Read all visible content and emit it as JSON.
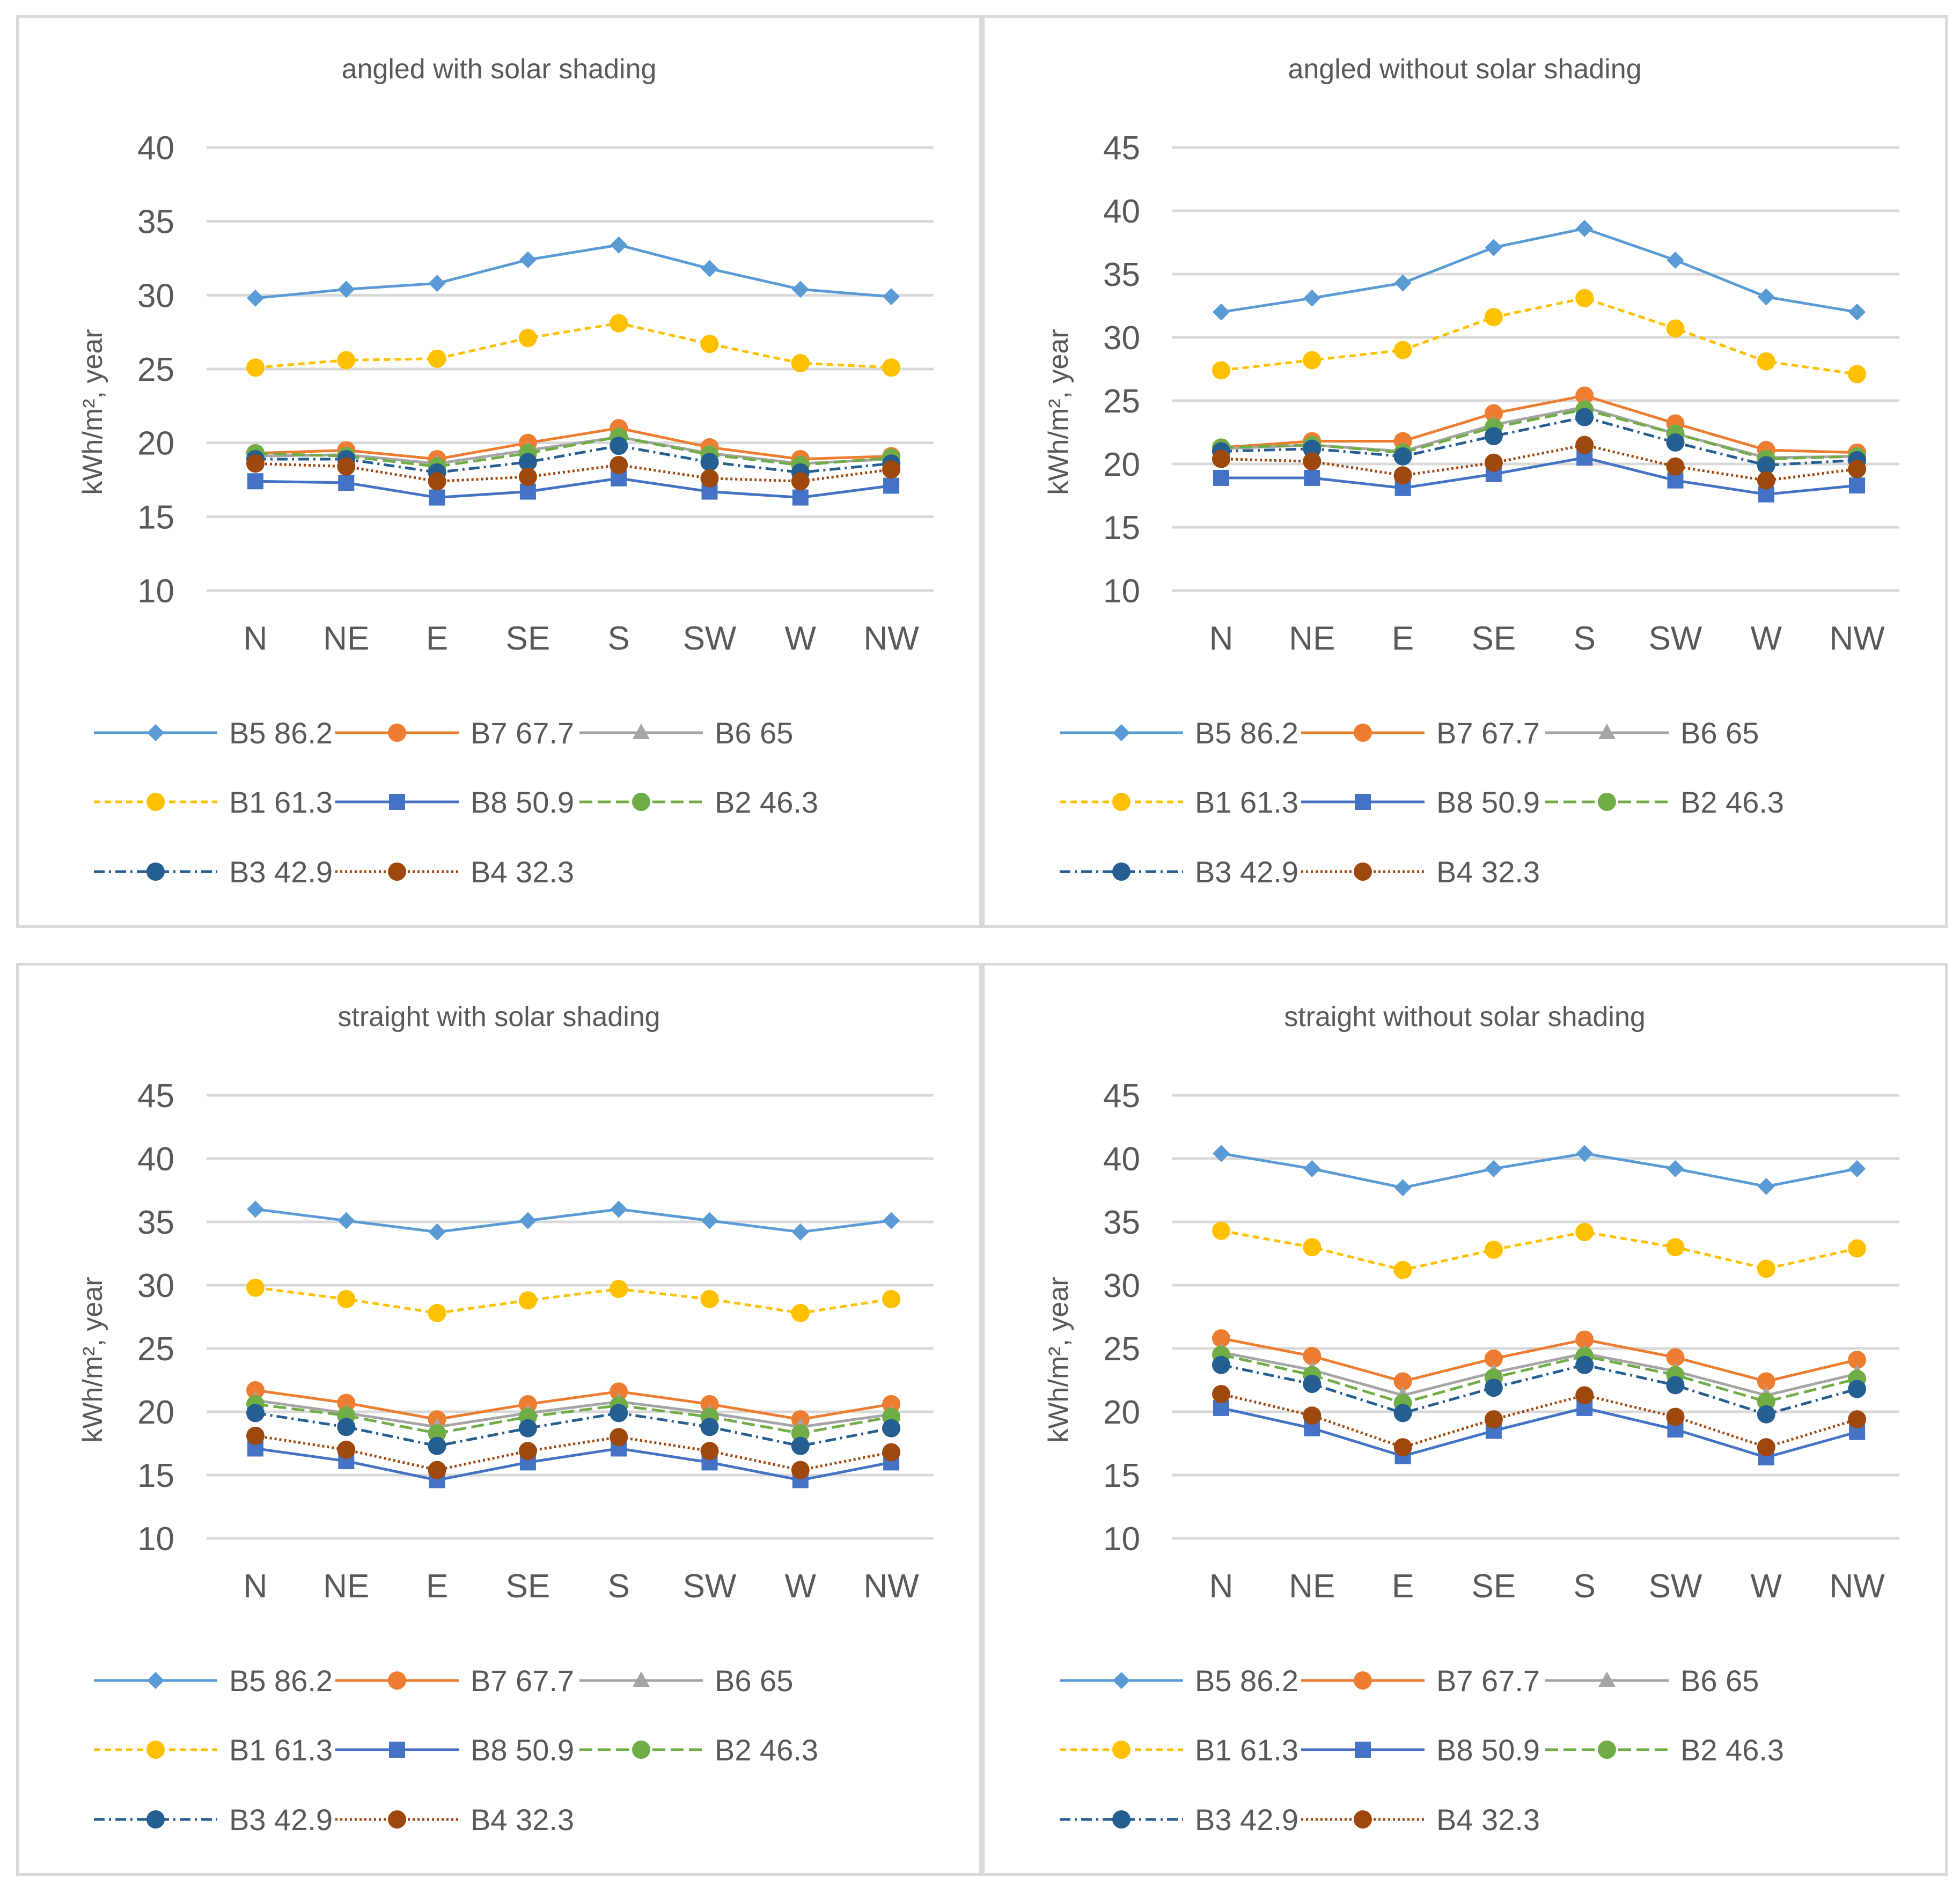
{
  "y_axis_label": "kWh/m², year",
  "categories": [
    "N",
    "NE",
    "E",
    "SE",
    "S",
    "SW",
    "W",
    "NW"
  ],
  "series_style": [
    {
      "name": "B5 86.2",
      "color": "#5b9bd5",
      "dash": "solid",
      "marker": "diamond"
    },
    {
      "name": "B7 67.7",
      "color": "#ed7d31",
      "dash": "solid",
      "marker": "circle"
    },
    {
      "name": "B6 65",
      "color": "#a5a5a5",
      "dash": "solid",
      "marker": "triangle"
    },
    {
      "name": "B1 61.3",
      "color": "#ffc000",
      "dash": "dash",
      "marker": "circle"
    },
    {
      "name": "B8 50.9",
      "color": "#4472c4",
      "dash": "solid",
      "marker": "square"
    },
    {
      "name": "B2 46.3",
      "color": "#70ad47",
      "dash": "longdash",
      "marker": "circle"
    },
    {
      "name": "B3 42.9",
      "color": "#255e91",
      "dash": "dashdot",
      "marker": "circle"
    },
    {
      "name": "B4 32.3",
      "color": "#9e480e",
      "dash": "dot",
      "marker": "circle"
    }
  ],
  "chart_data": [
    {
      "type": "line",
      "title": "angled with solar shading",
      "ylabel": "kWh/m², year",
      "ylim": [
        10,
        40
      ],
      "yticks": [
        10,
        15,
        20,
        25,
        30,
        35,
        40
      ],
      "categories": [
        "N",
        "NE",
        "E",
        "SE",
        "S",
        "SW",
        "W",
        "NW"
      ],
      "series": [
        {
          "name": "B5 86.2",
          "values": [
            29.8,
            30.4,
            30.8,
            32.4,
            33.4,
            31.8,
            30.4,
            29.9
          ]
        },
        {
          "name": "B7 67.7",
          "values": [
            19.3,
            19.5,
            18.9,
            20.0,
            21.0,
            19.7,
            18.9,
            19.1
          ]
        },
        {
          "name": "B6 65",
          "values": [
            19.1,
            19.2,
            18.6,
            19.5,
            20.4,
            19.3,
            18.6,
            18.9
          ]
        },
        {
          "name": "B1 61.3",
          "values": [
            25.1,
            25.6,
            25.7,
            27.1,
            28.1,
            26.7,
            25.4,
            25.1
          ]
        },
        {
          "name": "B8 50.9",
          "values": [
            17.4,
            17.3,
            16.3,
            16.7,
            17.6,
            16.7,
            16.3,
            17.1
          ]
        },
        {
          "name": "B2 46.3",
          "values": [
            19.3,
            19.1,
            18.4,
            19.3,
            20.4,
            19.2,
            18.5,
            19.0
          ]
        },
        {
          "name": "B3 42.9",
          "values": [
            18.9,
            18.9,
            18.0,
            18.7,
            19.8,
            18.7,
            18.0,
            18.6
          ]
        },
        {
          "name": "B4 32.3",
          "values": [
            18.6,
            18.4,
            17.4,
            17.7,
            18.5,
            17.6,
            17.4,
            18.2
          ]
        }
      ]
    },
    {
      "type": "line",
      "title": "angled without solar shading",
      "ylabel": "kWh/m², year",
      "ylim": [
        10,
        45
      ],
      "yticks": [
        10,
        15,
        20,
        25,
        30,
        35,
        40,
        45
      ],
      "categories": [
        "N",
        "NE",
        "E",
        "SE",
        "S",
        "SW",
        "W",
        "NW"
      ],
      "series": [
        {
          "name": "B5 86.2",
          "values": [
            32.0,
            33.1,
            34.3,
            37.1,
            38.6,
            36.1,
            33.2,
            32.0
          ]
        },
        {
          "name": "B7 67.7",
          "values": [
            21.3,
            21.8,
            21.8,
            24.0,
            25.4,
            23.2,
            21.1,
            20.9
          ]
        },
        {
          "name": "B6 65",
          "values": [
            21.2,
            21.5,
            21.0,
            23.1,
            24.5,
            22.4,
            20.5,
            20.6
          ]
        },
        {
          "name": "B1 61.3",
          "values": [
            27.4,
            28.2,
            29.0,
            31.6,
            33.1,
            30.7,
            28.1,
            27.1
          ]
        },
        {
          "name": "B8 50.9",
          "values": [
            18.9,
            18.9,
            18.1,
            19.2,
            20.5,
            18.7,
            17.6,
            18.3
          ]
        },
        {
          "name": "B2 46.3",
          "values": [
            21.3,
            21.5,
            20.9,
            22.9,
            24.3,
            22.4,
            20.4,
            20.6
          ]
        },
        {
          "name": "B3 42.9",
          "values": [
            21.0,
            21.2,
            20.6,
            22.2,
            23.7,
            21.7,
            19.9,
            20.3
          ]
        },
        {
          "name": "B4 32.3",
          "values": [
            20.4,
            20.2,
            19.1,
            20.1,
            21.5,
            19.8,
            18.7,
            19.6
          ]
        }
      ]
    },
    {
      "type": "line",
      "title": "straight with solar shading",
      "ylabel": "kWh/m², year",
      "ylim": [
        10,
        45
      ],
      "yticks": [
        10,
        15,
        20,
        25,
        30,
        35,
        40,
        45
      ],
      "categories": [
        "N",
        "NE",
        "E",
        "SE",
        "S",
        "SW",
        "W",
        "NW"
      ],
      "series": [
        {
          "name": "B5 86.2",
          "values": [
            36.0,
            35.1,
            34.2,
            35.1,
            36.0,
            35.1,
            34.2,
            35.1
          ]
        },
        {
          "name": "B7 67.7",
          "values": [
            21.7,
            20.7,
            19.4,
            20.6,
            21.6,
            20.6,
            19.4,
            20.6
          ]
        },
        {
          "name": "B6 65",
          "values": [
            20.9,
            19.9,
            18.8,
            19.9,
            20.8,
            19.9,
            18.8,
            19.8
          ]
        },
        {
          "name": "B1 61.3",
          "values": [
            29.8,
            28.9,
            27.8,
            28.8,
            29.7,
            28.9,
            27.8,
            28.9
          ]
        },
        {
          "name": "B8 50.9",
          "values": [
            17.1,
            16.1,
            14.6,
            16.0,
            17.1,
            16.0,
            14.6,
            16.0
          ]
        },
        {
          "name": "B2 46.3",
          "values": [
            20.6,
            19.7,
            18.3,
            19.6,
            20.5,
            19.6,
            18.3,
            19.6
          ]
        },
        {
          "name": "B3 42.9",
          "values": [
            19.9,
            18.8,
            17.3,
            18.7,
            19.9,
            18.8,
            17.3,
            18.7
          ]
        },
        {
          "name": "B4 32.3",
          "values": [
            18.1,
            17.0,
            15.4,
            16.9,
            18.0,
            16.9,
            15.4,
            16.8
          ]
        }
      ]
    },
    {
      "type": "line",
      "title": "straight without solar shading",
      "ylabel": "kWh/m², year",
      "ylim": [
        10,
        45
      ],
      "yticks": [
        10,
        15,
        20,
        25,
        30,
        35,
        40,
        45
      ],
      "categories": [
        "N",
        "NE",
        "E",
        "SE",
        "S",
        "SW",
        "W",
        "NW"
      ],
      "series": [
        {
          "name": "B5 86.2",
          "values": [
            40.4,
            39.2,
            37.7,
            39.2,
            40.4,
            39.2,
            37.8,
            39.2
          ]
        },
        {
          "name": "B7 67.7",
          "values": [
            25.8,
            24.4,
            22.4,
            24.2,
            25.7,
            24.3,
            22.4,
            24.1
          ]
        },
        {
          "name": "B6 65",
          "values": [
            24.7,
            23.3,
            21.3,
            23.1,
            24.6,
            23.2,
            21.3,
            23.0
          ]
        },
        {
          "name": "B1 61.3",
          "values": [
            34.3,
            33.0,
            31.2,
            32.8,
            34.2,
            33.0,
            31.3,
            32.9
          ]
        },
        {
          "name": "B8 50.9",
          "values": [
            20.3,
            18.7,
            16.5,
            18.5,
            20.3,
            18.6,
            16.4,
            18.4
          ]
        },
        {
          "name": "B2 46.3",
          "values": [
            24.5,
            22.9,
            20.7,
            22.7,
            24.4,
            22.9,
            20.8,
            22.6
          ]
        },
        {
          "name": "B3 42.9",
          "values": [
            23.7,
            22.2,
            19.9,
            21.9,
            23.7,
            22.1,
            19.8,
            21.8
          ]
        },
        {
          "name": "B4 32.3",
          "values": [
            21.4,
            19.7,
            17.2,
            19.4,
            21.3,
            19.6,
            17.2,
            19.4
          ]
        }
      ]
    }
  ]
}
